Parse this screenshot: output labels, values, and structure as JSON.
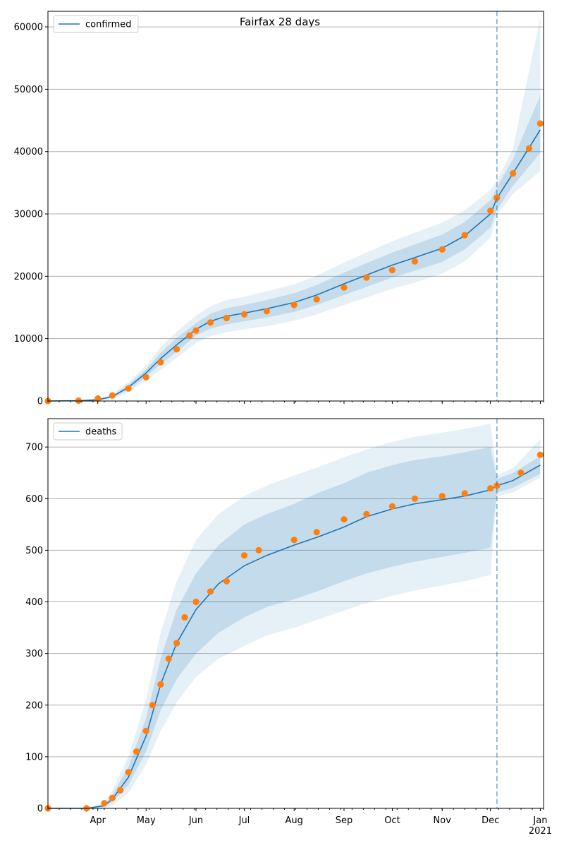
{
  "figure": {
    "title": "Fairfax 28 days"
  },
  "chart_data": [
    {
      "type": "line",
      "title": "",
      "xlabel": "",
      "ylabel": "",
      "legend": "top-left",
      "grid": "horizontal",
      "ylim": [
        0,
        62500
      ],
      "yticks": [
        0,
        10000,
        20000,
        30000,
        40000,
        50000,
        60000
      ],
      "series": [
        {
          "name": "confirmed",
          "kind": "line",
          "color": "#1f77b4",
          "x": [
            "2020-03-01",
            "2020-03-20",
            "2020-04-01",
            "2020-04-10",
            "2020-04-20",
            "2020-05-01",
            "2020-05-10",
            "2020-05-20",
            "2020-06-01",
            "2020-06-10",
            "2020-06-20",
            "2020-07-01",
            "2020-07-15",
            "2020-08-01",
            "2020-08-15",
            "2020-09-01",
            "2020-09-15",
            "2020-10-01",
            "2020-10-15",
            "2020-11-01",
            "2020-11-15",
            "2020-12-01",
            "2020-12-05",
            "2020-12-15",
            "2021-01-01"
          ],
          "y": [
            0,
            50,
            200,
            700,
            2200,
            4500,
            6800,
            9000,
            11500,
            12800,
            13600,
            14100,
            14800,
            15800,
            17000,
            18800,
            20200,
            21800,
            23000,
            24500,
            26500,
            30000,
            32500,
            36500,
            43500
          ],
          "band_inner": [
            [
              0,
              0
            ],
            [
              0,
              100
            ],
            [
              100,
              300
            ],
            [
              500,
              900
            ],
            [
              1800,
              2600
            ],
            [
              3900,
              5100
            ],
            [
              5900,
              7700
            ],
            [
              7900,
              10100
            ],
            [
              10500,
              12500
            ],
            [
              11600,
              14000
            ],
            [
              12300,
              14900
            ],
            [
              12800,
              15400
            ],
            [
              13400,
              16200
            ],
            [
              14300,
              17300
            ],
            [
              15400,
              18600
            ],
            [
              17000,
              20600
            ],
            [
              18300,
              22100
            ],
            [
              19800,
              23800
            ],
            [
              20900,
              25100
            ],
            [
              22300,
              26700
            ],
            [
              24300,
              28700
            ],
            [
              27800,
              32200
            ],
            [
              30700,
              34300
            ],
            [
              34500,
              38800
            ],
            [
              39800,
              49000
            ]
          ],
          "band_outer": [
            [
              0,
              0
            ],
            [
              0,
              150
            ],
            [
              50,
              400
            ],
            [
              300,
              1100
            ],
            [
              1400,
              3000
            ],
            [
              3300,
              5700
            ],
            [
              5000,
              8600
            ],
            [
              6900,
              11100
            ],
            [
              9300,
              13700
            ],
            [
              10400,
              15200
            ],
            [
              11000,
              16200
            ],
            [
              11500,
              16700
            ],
            [
              12000,
              17600
            ],
            [
              12900,
              18700
            ],
            [
              13900,
              20100
            ],
            [
              15400,
              22200
            ],
            [
              16600,
              23800
            ],
            [
              18000,
              25600
            ],
            [
              19000,
              27000
            ],
            [
              20400,
              28600
            ],
            [
              22400,
              30600
            ],
            [
              26200,
              33800
            ],
            [
              29800,
              35300
            ],
            [
              33200,
              40500
            ],
            [
              36900,
              61500
            ]
          ]
        },
        {
          "name": "",
          "kind": "points",
          "color": "#ff7f0e",
          "x": [
            "2020-03-01",
            "2020-03-20",
            "2020-04-01",
            "2020-04-10",
            "2020-04-20",
            "2020-05-01",
            "2020-05-10",
            "2020-05-20",
            "2020-05-28",
            "2020-06-01",
            "2020-06-10",
            "2020-06-20",
            "2020-07-01",
            "2020-07-15",
            "2020-08-01",
            "2020-08-15",
            "2020-09-01",
            "2020-09-15",
            "2020-10-01",
            "2020-10-15",
            "2020-11-01",
            "2020-11-15",
            "2020-12-01",
            "2020-12-05",
            "2020-12-15",
            "2020-12-25",
            "2021-01-01"
          ],
          "y": [
            0,
            60,
            400,
            900,
            2000,
            3800,
            6200,
            8300,
            10500,
            11300,
            12600,
            13300,
            13900,
            14400,
            15400,
            16300,
            18200,
            19800,
            21000,
            22400,
            24300,
            26600,
            30500,
            32600,
            36500,
            40500,
            44500
          ]
        }
      ],
      "forecast_start": "2020-12-05"
    },
    {
      "type": "line",
      "title": "",
      "xlabel": "",
      "ylabel": "",
      "legend": "top-left",
      "grid": "horizontal",
      "ylim": [
        0,
        755
      ],
      "yticks": [
        0,
        100,
        200,
        300,
        400,
        500,
        600,
        700
      ],
      "x_tick_labels": [
        "Apr",
        "May",
        "Jun",
        "Jul",
        "Aug",
        "Sep",
        "Oct",
        "Nov",
        "Dec",
        "Jan\n2021"
      ],
      "series": [
        {
          "name": "deaths",
          "kind": "line",
          "color": "#1f77b4",
          "x": [
            "2020-03-01",
            "2020-03-25",
            "2020-04-05",
            "2020-04-10",
            "2020-04-20",
            "2020-05-01",
            "2020-05-10",
            "2020-05-20",
            "2020-06-01",
            "2020-06-15",
            "2020-07-01",
            "2020-07-15",
            "2020-08-01",
            "2020-08-15",
            "2020-09-01",
            "2020-09-15",
            "2020-10-01",
            "2020-10-15",
            "2020-11-01",
            "2020-11-15",
            "2020-12-01",
            "2020-12-05",
            "2020-12-15",
            "2021-01-01"
          ],
          "y": [
            0,
            0,
            5,
            18,
            60,
            140,
            240,
            320,
            385,
            435,
            470,
            490,
            510,
            525,
            545,
            565,
            580,
            590,
            598,
            605,
            617,
            625,
            635,
            665
          ],
          "band_inner": [
            [
              0,
              0
            ],
            [
              0,
              0
            ],
            [
              3,
              8
            ],
            [
              12,
              26
            ],
            [
              45,
              80
            ],
            [
              110,
              175
            ],
            [
              190,
              290
            ],
            [
              250,
              385
            ],
            [
              300,
              455
            ],
            [
              340,
              510
            ],
            [
              370,
              550
            ],
            [
              390,
              570
            ],
            [
              405,
              590
            ],
            [
              420,
              610
            ],
            [
              440,
              630
            ],
            [
              455,
              650
            ],
            [
              468,
              665
            ],
            [
              478,
              675
            ],
            [
              487,
              682
            ],
            [
              495,
              690
            ],
            [
              505,
              700
            ],
            [
              612,
              638
            ],
            [
              621,
              650
            ],
            [
              648,
              682
            ]
          ],
          "band_outer": [
            [
              0,
              0
            ],
            [
              0,
              0
            ],
            [
              0,
              12
            ],
            [
              6,
              35
            ],
            [
              30,
              100
            ],
            [
              85,
              210
            ],
            [
              150,
              340
            ],
            [
              205,
              440
            ],
            [
              255,
              520
            ],
            [
              290,
              570
            ],
            [
              315,
              605
            ],
            [
              335,
              625
            ],
            [
              350,
              645
            ],
            [
              365,
              660
            ],
            [
              383,
              680
            ],
            [
              398,
              695
            ],
            [
              412,
              710
            ],
            [
              422,
              720
            ],
            [
              432,
              728
            ],
            [
              440,
              735
            ],
            [
              452,
              745
            ],
            [
              604,
              646
            ],
            [
              612,
              659
            ],
            [
              641,
              715
            ]
          ]
        },
        {
          "name": "",
          "kind": "points",
          "color": "#ff7f0e",
          "x": [
            "2020-03-01",
            "2020-03-25",
            "2020-04-05",
            "2020-04-10",
            "2020-04-15",
            "2020-04-20",
            "2020-04-25",
            "2020-05-01",
            "2020-05-05",
            "2020-05-10",
            "2020-05-15",
            "2020-05-20",
            "2020-05-25",
            "2020-06-01",
            "2020-06-10",
            "2020-06-20",
            "2020-07-01",
            "2020-07-10",
            "2020-08-01",
            "2020-08-15",
            "2020-09-01",
            "2020-09-15",
            "2020-10-01",
            "2020-10-15",
            "2020-11-01",
            "2020-11-15",
            "2020-12-01",
            "2020-12-05",
            "2020-12-20",
            "2021-01-01"
          ],
          "y": [
            0,
            0,
            10,
            20,
            35,
            70,
            110,
            150,
            200,
            240,
            290,
            320,
            370,
            400,
            420,
            440,
            490,
            500,
            520,
            535,
            560,
            570,
            585,
            600,
            605,
            610,
            620,
            625,
            650,
            685
          ]
        }
      ],
      "forecast_start": "2020-12-05"
    }
  ]
}
